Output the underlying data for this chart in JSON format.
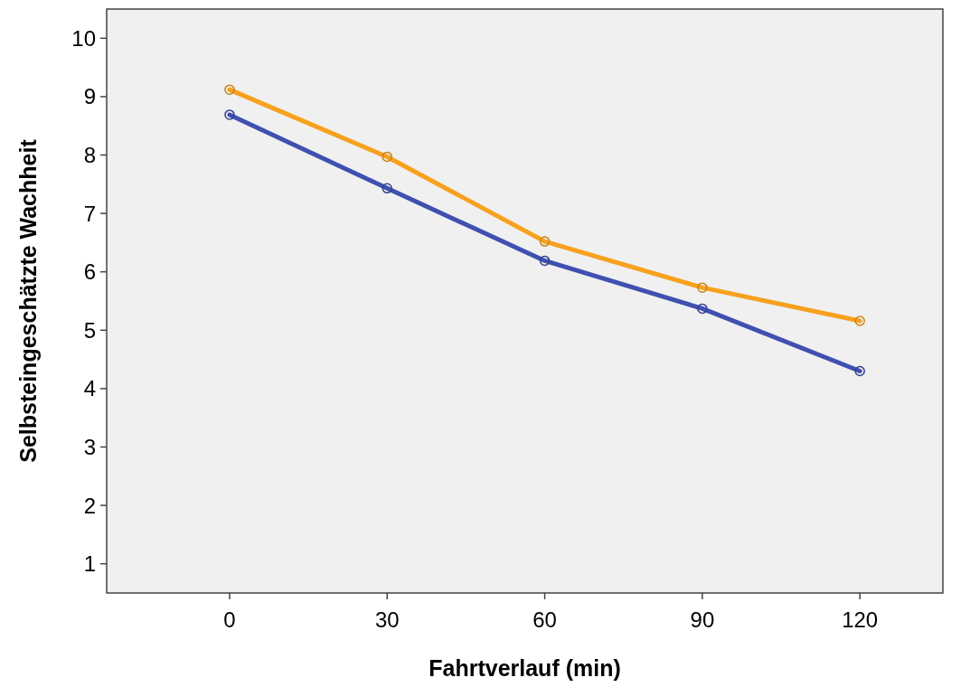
{
  "chart_data": {
    "type": "line",
    "xlabel": "Fahrtverlauf (min)",
    "ylabel": "Selbsteingeschätzte Wachheit",
    "x": [
      0,
      30,
      60,
      90,
      120
    ],
    "series": [
      {
        "color": "#f7a11f",
        "values": [
          9.12,
          7.97,
          6.52,
          5.73,
          5.16
        ]
      },
      {
        "color": "#4050b0",
        "values": [
          8.69,
          7.43,
          6.19,
          5.37,
          4.3
        ]
      }
    ],
    "xlim": [
      -23.4,
      135.8
    ],
    "xticks": [
      0,
      30,
      60,
      90,
      120
    ],
    "ylim": [
      0.5,
      10.5
    ],
    "yticks": [
      1,
      2,
      3,
      4,
      5,
      6,
      7,
      8,
      9,
      10
    ],
    "marker": "circle",
    "line_style": "solid",
    "grid": false
  }
}
